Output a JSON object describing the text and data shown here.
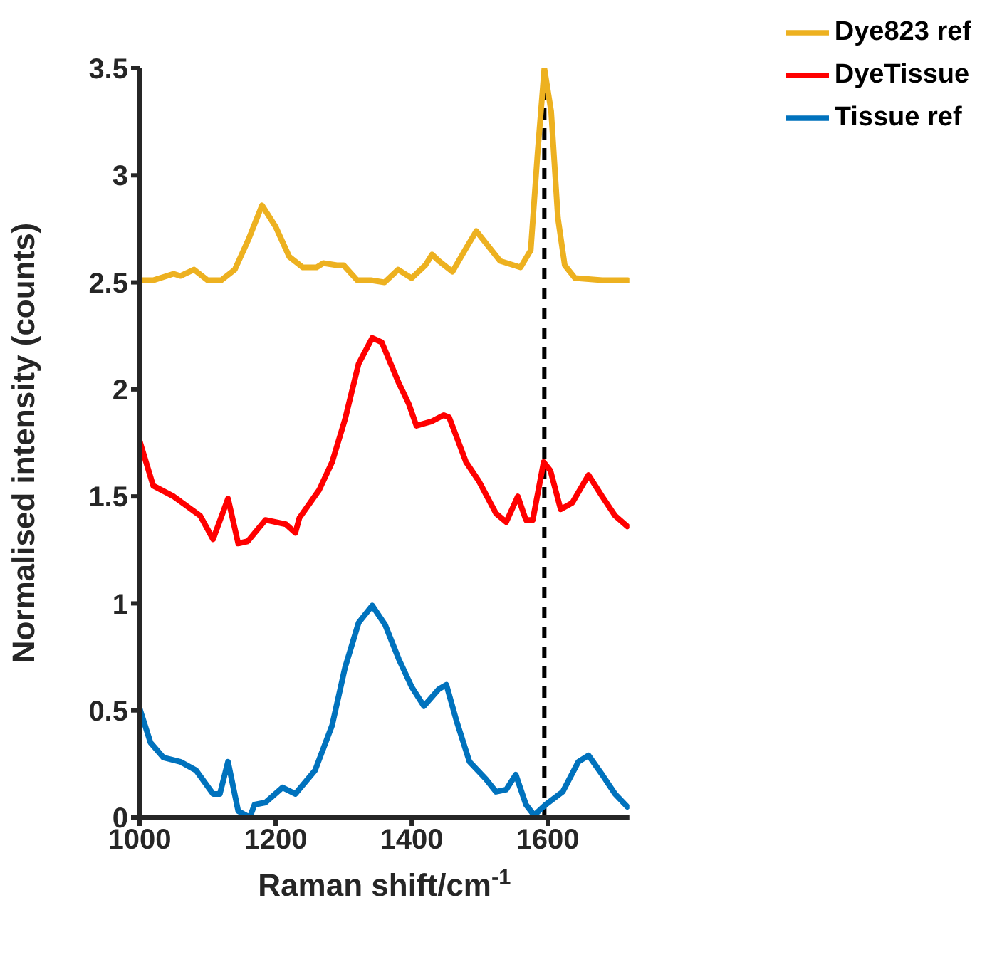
{
  "chart_data": {
    "type": "line",
    "xlabel": "Raman shift/cm$^{-1}$",
    "ylabel": "Normalised intensity (counts)",
    "xlim": [
      1000,
      1720
    ],
    "xticks": [
      1000,
      1200,
      1400,
      1600
    ],
    "ylim": [
      0,
      3.5
    ],
    "yticks": [
      0,
      0.5,
      1,
      1.5,
      2,
      2.5,
      3,
      3.5
    ],
    "grid": false,
    "legend": "top right",
    "marker": "none",
    "line_style": "solid",
    "ref_lines": [
      {
        "axis": "x",
        "value": 1595,
        "color": "#000000",
        "line_style": "dashed"
      }
    ],
    "series": [
      {
        "name": "Dye823 ref",
        "color": "#edb120",
        "x": [
          1000,
          1020,
          1050,
          1060,
          1080,
          1100,
          1120,
          1140,
          1160,
          1180,
          1200,
          1220,
          1240,
          1260,
          1270,
          1290,
          1300,
          1320,
          1340,
          1360,
          1380,
          1400,
          1420,
          1430,
          1440,
          1460,
          1480,
          1495,
          1510,
          1530,
          1560,
          1575,
          1585,
          1595,
          1605,
          1615,
          1625,
          1640,
          1680,
          1718
        ],
        "values": [
          2.51,
          2.51,
          2.54,
          2.53,
          2.56,
          2.51,
          2.51,
          2.56,
          2.7,
          2.86,
          2.76,
          2.62,
          2.57,
          2.57,
          2.59,
          2.58,
          2.58,
          2.51,
          2.51,
          2.5,
          2.56,
          2.52,
          2.58,
          2.63,
          2.6,
          2.55,
          2.66,
          2.74,
          2.68,
          2.6,
          2.57,
          2.65,
          3.1,
          3.5,
          3.3,
          2.8,
          2.58,
          2.52,
          2.51,
          2.51
        ]
      },
      {
        "name": "DyeTissue",
        "color": "#ff0000",
        "x": [
          1000,
          1020,
          1050,
          1089,
          1108,
          1130,
          1145,
          1159,
          1185,
          1215,
          1229,
          1235,
          1264,
          1283,
          1302,
          1322,
          1342,
          1356,
          1381,
          1396,
          1407,
          1429,
          1447,
          1455,
          1480,
          1499,
          1524,
          1539,
          1556,
          1568,
          1578,
          1594,
          1604,
          1619,
          1636,
          1660,
          1680,
          1699,
          1717
        ],
        "values": [
          1.76,
          1.55,
          1.5,
          1.41,
          1.3,
          1.49,
          1.28,
          1.29,
          1.39,
          1.37,
          1.33,
          1.4,
          1.53,
          1.66,
          1.86,
          2.12,
          2.24,
          2.22,
          2.03,
          1.93,
          1.83,
          1.85,
          1.88,
          1.87,
          1.66,
          1.57,
          1.42,
          1.38,
          1.5,
          1.39,
          1.39,
          1.66,
          1.62,
          1.44,
          1.47,
          1.6,
          1.5,
          1.41,
          1.36
        ]
      },
      {
        "name": "Tissue ref",
        "color": "#0072bd",
        "x": [
          1000,
          1016,
          1035,
          1060,
          1083,
          1108,
          1118,
          1130,
          1145,
          1162,
          1169,
          1185,
          1210,
          1229,
          1258,
          1283,
          1302,
          1322,
          1342,
          1361,
          1381,
          1400,
          1418,
          1440,
          1451,
          1466,
          1485,
          1509,
          1524,
          1539,
          1553,
          1568,
          1580,
          1597,
          1622,
          1645,
          1660,
          1680,
          1699,
          1717
        ],
        "values": [
          0.51,
          0.35,
          0.28,
          0.26,
          0.22,
          0.11,
          0.11,
          0.26,
          0.03,
          0.0,
          0.06,
          0.07,
          0.14,
          0.11,
          0.22,
          0.43,
          0.7,
          0.91,
          0.99,
          0.9,
          0.74,
          0.61,
          0.52,
          0.6,
          0.62,
          0.45,
          0.26,
          0.18,
          0.12,
          0.13,
          0.2,
          0.06,
          0.01,
          0.06,
          0.12,
          0.26,
          0.29,
          0.2,
          0.11,
          0.05
        ]
      }
    ]
  }
}
